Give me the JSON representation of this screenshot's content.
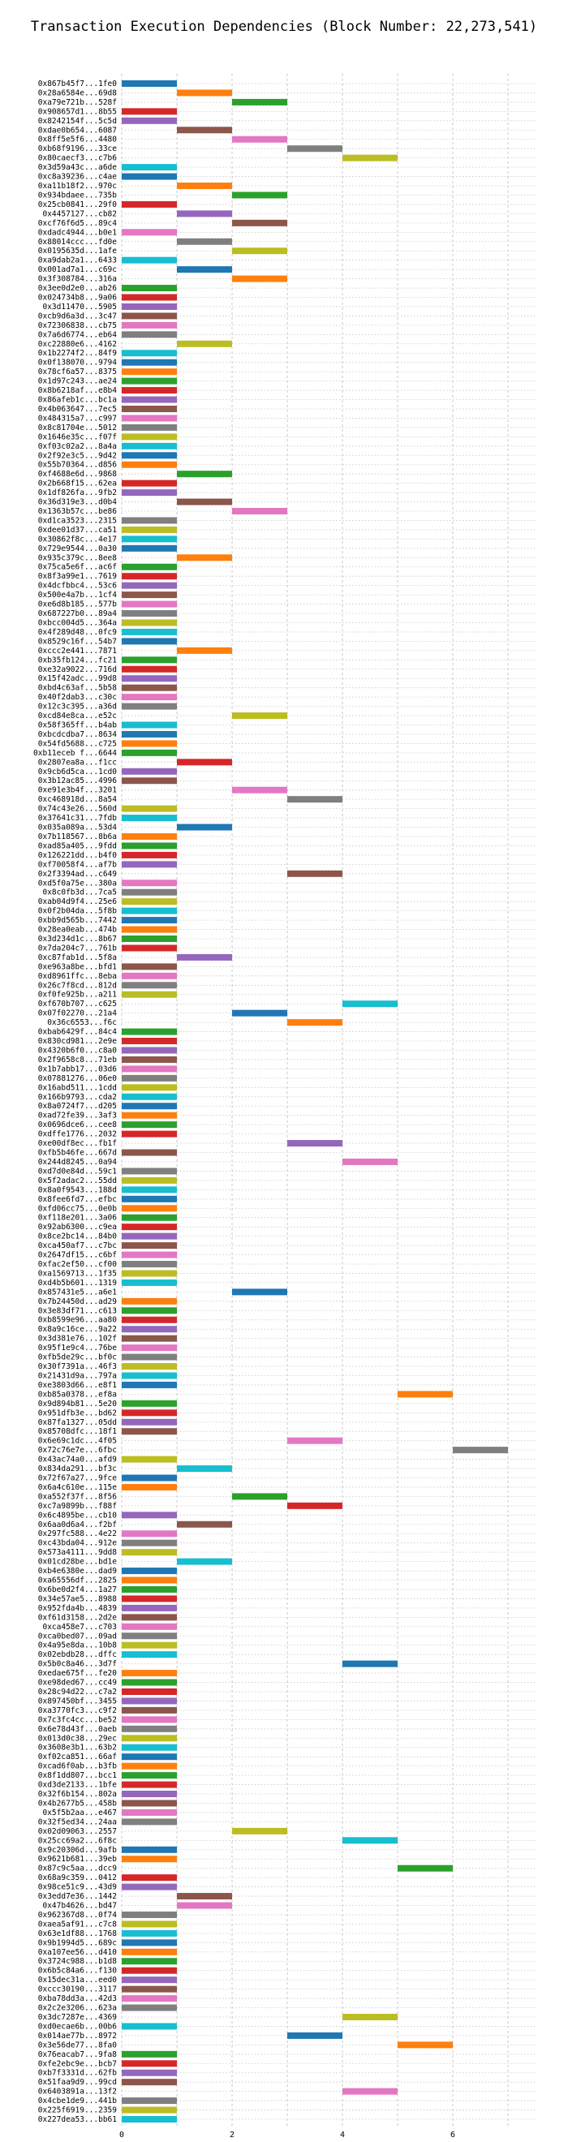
{
  "chart_data": {
    "type": "bar",
    "title": "Transaction Execution Dependencies (Block Number: 22,273,541)",
    "xlabel": "",
    "ylabel": "",
    "xlim": [
      0,
      7.5
    ],
    "x_ticks": [
      0,
      2,
      4,
      6
    ],
    "grid": true,
    "bar_width": 1,
    "palette": [
      "#1f77b4",
      "#ff7f0e",
      "#2ca02c",
      "#d62728",
      "#9467bd",
      "#8c564b",
      "#e377c2",
      "#7f7f7f",
      "#bcbd22",
      "#17becf"
    ],
    "transactions": [
      {
        "hash": "0x867b45f7...1fe0",
        "start": 0
      },
      {
        "hash": "0x28a6584e...69d8",
        "start": 1
      },
      {
        "hash": "0xa79e721b...528f",
        "start": 2
      },
      {
        "hash": "0x908657d1...8b55",
        "start": 0
      },
      {
        "hash": "0x8242154f...5c5d",
        "start": 0
      },
      {
        "hash": "0xdae0b654...6087",
        "start": 1
      },
      {
        "hash": "0x8ff5e5f6...4480",
        "start": 2
      },
      {
        "hash": "0xb68f9196...33ce",
        "start": 3
      },
      {
        "hash": "0x80caecf3...c7b6",
        "start": 4
      },
      {
        "hash": "0x3d59a43c...a6de",
        "start": 0
      },
      {
        "hash": "0xc8a39236...c4ae",
        "start": 0
      },
      {
        "hash": "0xa11b18f2...970c",
        "start": 1
      },
      {
        "hash": "0x934bdaee...735b",
        "start": 2
      },
      {
        "hash": "0x25cb0841...29f0",
        "start": 0
      },
      {
        "hash": "0x4457127...cb82",
        "start": 1
      },
      {
        "hash": "0xcf76f6d5...89c4",
        "start": 2
      },
      {
        "hash": "0xdadc4944...b0e1",
        "start": 0
      },
      {
        "hash": "0x88014ccc...fd0e",
        "start": 1
      },
      {
        "hash": "0x0195635d...1afe",
        "start": 2
      },
      {
        "hash": "0xa9dab2a1...6433",
        "start": 0
      },
      {
        "hash": "0x001ad7a1...c69c",
        "start": 1
      },
      {
        "hash": "0x3f308784...316a",
        "start": 2
      },
      {
        "hash": "0x3ee0d2e0...ab26",
        "start": 0
      },
      {
        "hash": "0x024734b8...9a06",
        "start": 0
      },
      {
        "hash": "0x3d11470...5905",
        "start": 0
      },
      {
        "hash": "0xcb9d6a3d...3c47",
        "start": 0
      },
      {
        "hash": "0x72306838...cb75",
        "start": 0
      },
      {
        "hash": "0x7a6d6774...eb64",
        "start": 0
      },
      {
        "hash": "0xc22880e6...4162",
        "start": 1
      },
      {
        "hash": "0x1b2274f2...84f9",
        "start": 0
      },
      {
        "hash": "0x0f138070...9794",
        "start": 0
      },
      {
        "hash": "0x78cf6a57...8375",
        "start": 0
      },
      {
        "hash": "0x1d97c243...ae24",
        "start": 0
      },
      {
        "hash": "0x8b6218af...e8b4",
        "start": 0
      },
      {
        "hash": "0x86afeb1c...bc1a",
        "start": 0
      },
      {
        "hash": "0x4b063647...7ec5",
        "start": 0
      },
      {
        "hash": "0x484315a7...c997",
        "start": 0
      },
      {
        "hash": "0x8c81704e...5012",
        "start": 0
      },
      {
        "hash": "0x1646e35c...f07f",
        "start": 0
      },
      {
        "hash": "0xf03c02a2...8a4a",
        "start": 0
      },
      {
        "hash": "0x2f92e3c5...9d42",
        "start": 0
      },
      {
        "hash": "0x55b70364...d856",
        "start": 0
      },
      {
        "hash": "0xf4688e6d...9868",
        "start": 1
      },
      {
        "hash": "0x2b668f15...62ea",
        "start": 0
      },
      {
        "hash": "0x1df826fa...9fb2",
        "start": 0
      },
      {
        "hash": "0x36d319e3...d0b4",
        "start": 1
      },
      {
        "hash": "0x1363b57c...be86",
        "start": 2
      },
      {
        "hash": "0xd1ca3523...2315",
        "start": 0
      },
      {
        "hash": "0xdee01d37...ca51",
        "start": 0
      },
      {
        "hash": "0x30862f8c...4e17",
        "start": 0
      },
      {
        "hash": "0x729e9544...0a30",
        "start": 0
      },
      {
        "hash": "0x935c379c...8ee8",
        "start": 1
      },
      {
        "hash": "0x75ca5e6f...ac6f",
        "start": 0
      },
      {
        "hash": "0x8f3a99e1...7619",
        "start": 0
      },
      {
        "hash": "0x4dcfbbc4...53c6",
        "start": 0
      },
      {
        "hash": "0x500e4a7b...1cf4",
        "start": 0
      },
      {
        "hash": "0xe6d8b185...577b",
        "start": 0
      },
      {
        "hash": "0x687227b0...89a4",
        "start": 0
      },
      {
        "hash": "0xbcc004d5...364a",
        "start": 0
      },
      {
        "hash": "0x4f289d48...0fc9",
        "start": 0
      },
      {
        "hash": "0x8529c16f...54b7",
        "start": 0
      },
      {
        "hash": "0xccc2e441...7871",
        "start": 1
      },
      {
        "hash": "0xb35fb124...fc21",
        "start": 0
      },
      {
        "hash": "0xe32a9022...716d",
        "start": 0
      },
      {
        "hash": "0x15f42adc...99d8",
        "start": 0
      },
      {
        "hash": "0xbd4c63af...5b58",
        "start": 0
      },
      {
        "hash": "0x40f2dab3...c30c",
        "start": 0
      },
      {
        "hash": "0x12c3c395...a36d",
        "start": 0
      },
      {
        "hash": "0xcd84e8ca...e52c",
        "start": 2
      },
      {
        "hash": "0x58f365ff...b4ab",
        "start": 0
      },
      {
        "hash": "0xbcdcdba7...8634",
        "start": 0
      },
      {
        "hash": "0x54fd5688...c725",
        "start": 0
      },
      {
        "hash": "0xb11eceb f...6644",
        "start": 0
      },
      {
        "hash": "0x2807ea8a...f1cc",
        "start": 1
      },
      {
        "hash": "0x9cb6d5ca...1cd0",
        "start": 0
      },
      {
        "hash": "0x3b12ac85...4996",
        "start": 0
      },
      {
        "hash": "0xe91e3b4f...3201",
        "start": 2
      },
      {
        "hash": "0xc468918d...8a54",
        "start": 3
      },
      {
        "hash": "0x74c43e26...560d",
        "start": 0
      },
      {
        "hash": "0x37641c31...7fdb",
        "start": 0
      },
      {
        "hash": "0x035a089a...53d4",
        "start": 1
      },
      {
        "hash": "0x7b118567...8b6a",
        "start": 0
      },
      {
        "hash": "0xad85a405...9fdd",
        "start": 0
      },
      {
        "hash": "0x126221dd...b4f0",
        "start": 0
      },
      {
        "hash": "0xf70058f4...af7b",
        "start": 0
      },
      {
        "hash": "0x2f3394ad...c649",
        "start": 3
      },
      {
        "hash": "0xd5f0a75e...380a",
        "start": 0
      },
      {
        "hash": "0x8c0fb3d...7ca5",
        "start": 0
      },
      {
        "hash": "0xab04d9f4...25e6",
        "start": 0
      },
      {
        "hash": "0x0f2b04da...5f8b",
        "start": 0
      },
      {
        "hash": "0xbb9d565b...7442",
        "start": 0
      },
      {
        "hash": "0x28ea0eab...474b",
        "start": 0
      },
      {
        "hash": "0x3d234d1c...8b67",
        "start": 0
      },
      {
        "hash": "0x7da204c7...761b",
        "start": 0
      },
      {
        "hash": "0xc87fab1d...5f8a",
        "start": 1
      },
      {
        "hash": "0xe963a8be...bfd1",
        "start": 0
      },
      {
        "hash": "0xd8961ffc...8eba",
        "start": 0
      },
      {
        "hash": "0x26c7f8cd...812d",
        "start": 0
      },
      {
        "hash": "0xf0fe925b...a211",
        "start": 0
      },
      {
        "hash": "0xf670b707...c625",
        "start": 4
      },
      {
        "hash": "0x07f02270...21a4",
        "start": 2
      },
      {
        "hash": "0x36c6553...f6c",
        "start": 3
      },
      {
        "hash": "0xbab6429f...84c4",
        "start": 0
      },
      {
        "hash": "0x830cd981...2e9e",
        "start": 0
      },
      {
        "hash": "0x4320b6f0...c8a0",
        "start": 0
      },
      {
        "hash": "0x2f9658c8...71eb",
        "start": 0
      },
      {
        "hash": "0x1b7abb17...03d6",
        "start": 0
      },
      {
        "hash": "0x07881276...06e0",
        "start": 0
      },
      {
        "hash": "0x16abd511...1cdd",
        "start": 0
      },
      {
        "hash": "0x166b9793...cda2",
        "start": 0
      },
      {
        "hash": "0x8a0724f7...d205",
        "start": 0
      },
      {
        "hash": "0xad72fe39...3af3",
        "start": 0
      },
      {
        "hash": "0x0696dce6...cee8",
        "start": 0
      },
      {
        "hash": "0xdffe1776...2032",
        "start": 0
      },
      {
        "hash": "0xe00df8ec...fb1f",
        "start": 3
      },
      {
        "hash": "0xfb5b46fe...667d",
        "start": 0
      },
      {
        "hash": "0x244d8245...0a94",
        "start": 4
      },
      {
        "hash": "0xd7d0e84d...59c1",
        "start": 0
      },
      {
        "hash": "0x5f2adac2...55dd",
        "start": 0
      },
      {
        "hash": "0x8a0f9543...188d",
        "start": 0
      },
      {
        "hash": "0x8fee6fd7...efbc",
        "start": 0
      },
      {
        "hash": "0xfd06cc75...0e0b",
        "start": 0
      },
      {
        "hash": "0xf118e201...3a06",
        "start": 0
      },
      {
        "hash": "0x92ab6300...c9ea",
        "start": 0
      },
      {
        "hash": "0x8ce2bc14...84b0",
        "start": 0
      },
      {
        "hash": "0xca450af7...c7bc",
        "start": 0
      },
      {
        "hash": "0x2647df15...c6bf",
        "start": 0
      },
      {
        "hash": "0xfac2ef50...cf00",
        "start": 0
      },
      {
        "hash": "0xa1569713...1f35",
        "start": 0
      },
      {
        "hash": "0xd4b5b601...1319",
        "start": 0
      },
      {
        "hash": "0x857431e5...a6e1",
        "start": 2
      },
      {
        "hash": "0x7b24450d...ad29",
        "start": 0
      },
      {
        "hash": "0x3e83df71...c613",
        "start": 0
      },
      {
        "hash": "0xb8599e96...aa80",
        "start": 0
      },
      {
        "hash": "0x8a9c16ce...9a22",
        "start": 0
      },
      {
        "hash": "0x3d381e76...102f",
        "start": 0
      },
      {
        "hash": "0x95f1e9c4...76be",
        "start": 0
      },
      {
        "hash": "0xfb5de29c...bf0c",
        "start": 0
      },
      {
        "hash": "0x30f7391a...46f3",
        "start": 0
      },
      {
        "hash": "0x21431d9a...797a",
        "start": 0
      },
      {
        "hash": "0xe3803d66...e8f1",
        "start": 0
      },
      {
        "hash": "0xb85a0378...ef8a",
        "start": 5
      },
      {
        "hash": "0x9d894b81...5e20",
        "start": 0
      },
      {
        "hash": "0x951dfb3e...bd62",
        "start": 0
      },
      {
        "hash": "0x87fa1327...05dd",
        "start": 0
      },
      {
        "hash": "0x85708dfc...18f1",
        "start": 0
      },
      {
        "hash": "0x6e69c1dc...4f05",
        "start": 3
      },
      {
        "hash": "0x72c76e7e...6fbc",
        "start": 6
      },
      {
        "hash": "0x43ac74a0...afd9",
        "start": 0
      },
      {
        "hash": "0x834da291...bf3c",
        "start": 1
      },
      {
        "hash": "0x72f67a27...9fce",
        "start": 0
      },
      {
        "hash": "0x6a4c610e...115e",
        "start": 0
      },
      {
        "hash": "0xa552f37f...8f56",
        "start": 2
      },
      {
        "hash": "0xc7a9899b...f88f",
        "start": 3
      },
      {
        "hash": "0x6c4895be...cb10",
        "start": 0
      },
      {
        "hash": "0x6aa0d6a4...f2bf",
        "start": 1
      },
      {
        "hash": "0x297fc588...4e22",
        "start": 0
      },
      {
        "hash": "0xc43bda04...912e",
        "start": 0
      },
      {
        "hash": "0x573a4111...9dd8",
        "start": 0
      },
      {
        "hash": "0x01cd28be...bd1e",
        "start": 1
      },
      {
        "hash": "0xb4e6380e...dad9",
        "start": 0
      },
      {
        "hash": "0xa65556df...2825",
        "start": 0
      },
      {
        "hash": "0x6be0d2f4...1a27",
        "start": 0
      },
      {
        "hash": "0x34e57ae5...8988",
        "start": 0
      },
      {
        "hash": "0x952fda4b...4839",
        "start": 0
      },
      {
        "hash": "0xf61d3158...2d2e",
        "start": 0
      },
      {
        "hash": "0xca458e7...c703",
        "start": 0
      },
      {
        "hash": "0xca0bed07...09ad",
        "start": 0
      },
      {
        "hash": "0x4a95e8da...10b8",
        "start": 0
      },
      {
        "hash": "0x02ebdb28...dffc",
        "start": 0
      },
      {
        "hash": "0x5b0c8a46...3d7f",
        "start": 4
      },
      {
        "hash": "0xedae675f...fe20",
        "start": 0
      },
      {
        "hash": "0xe98ded67...cc49",
        "start": 0
      },
      {
        "hash": "0x28c94d22...c7a2",
        "start": 0
      },
      {
        "hash": "0x897450bf...3455",
        "start": 0
      },
      {
        "hash": "0xa3770fc3...c9f2",
        "start": 0
      },
      {
        "hash": "0x7c3fc4cc...be52",
        "start": 0
      },
      {
        "hash": "0x6e78d43f...0aeb",
        "start": 0
      },
      {
        "hash": "0x013d0c38...29ec",
        "start": 0
      },
      {
        "hash": "0x3608e3b1...63b2",
        "start": 0
      },
      {
        "hash": "0xf02ca851...66af",
        "start": 0
      },
      {
        "hash": "0xcad6f0ab...b3fb",
        "start": 0
      },
      {
        "hash": "0x8f1dd807...bcc1",
        "start": 0
      },
      {
        "hash": "0xd3de2133...1bfe",
        "start": 0
      },
      {
        "hash": "0x32f6b154...802a",
        "start": 0
      },
      {
        "hash": "0x4b2677b5...458b",
        "start": 0
      },
      {
        "hash": "0x5f5b2aa...e467",
        "start": 0
      },
      {
        "hash": "0x32f5ed34...24aa",
        "start": 0
      },
      {
        "hash": "0x02d09063...2557",
        "start": 2
      },
      {
        "hash": "0x25cc69a2...6f8c",
        "start": 4
      },
      {
        "hash": "0x9c20306d...9afb",
        "start": 0
      },
      {
        "hash": "0x9621b681...39eb",
        "start": 0
      },
      {
        "hash": "0x87c9c5aa...dcc9",
        "start": 5
      },
      {
        "hash": "0x68a9c359...0412",
        "start": 0
      },
      {
        "hash": "0x98ce51c9...43d9",
        "start": 0
      },
      {
        "hash": "0x3edd7e36...1442",
        "start": 1
      },
      {
        "hash": "0x47b4626...bd47",
        "start": 1
      },
      {
        "hash": "0x962367d8...0f74",
        "start": 0
      },
      {
        "hash": "0xaea5af91...c7c8",
        "start": 0
      },
      {
        "hash": "0x63e1df88...1768",
        "start": 0
      },
      {
        "hash": "0x9b1994d5...689c",
        "start": 0
      },
      {
        "hash": "0xa107ee56...d410",
        "start": 0
      },
      {
        "hash": "0x3724c988...b1d8",
        "start": 0
      },
      {
        "hash": "0x6b5c84a6...f130",
        "start": 0
      },
      {
        "hash": "0x15dec31a...eed0",
        "start": 0
      },
      {
        "hash": "0xccc30190...3117",
        "start": 0
      },
      {
        "hash": "0xba78dd3a...42d3",
        "start": 0
      },
      {
        "hash": "0x2c2e3206...623a",
        "start": 0
      },
      {
        "hash": "0x3dc7287e...4369",
        "start": 4
      },
      {
        "hash": "0xd0ecae6b...00b6",
        "start": 0
      },
      {
        "hash": "0x014ae77b...8972",
        "start": 3
      },
      {
        "hash": "0x3e56de77...8fa0",
        "start": 5
      },
      {
        "hash": "0x76eacab7...9fa8",
        "start": 0
      },
      {
        "hash": "0xfe2ebc9e...bcb7",
        "start": 0
      },
      {
        "hash": "0xb7f3331d...62fb",
        "start": 0
      },
      {
        "hash": "0x51faa9d9...99cd",
        "start": 0
      },
      {
        "hash": "0x6403891a...13f2",
        "start": 4
      },
      {
        "hash": "0x4cbe1de9...441b",
        "start": 0
      },
      {
        "hash": "0x225f6919...2359",
        "start": 0
      },
      {
        "hash": "0x227dea53...bb61",
        "start": 0
      }
    ]
  }
}
